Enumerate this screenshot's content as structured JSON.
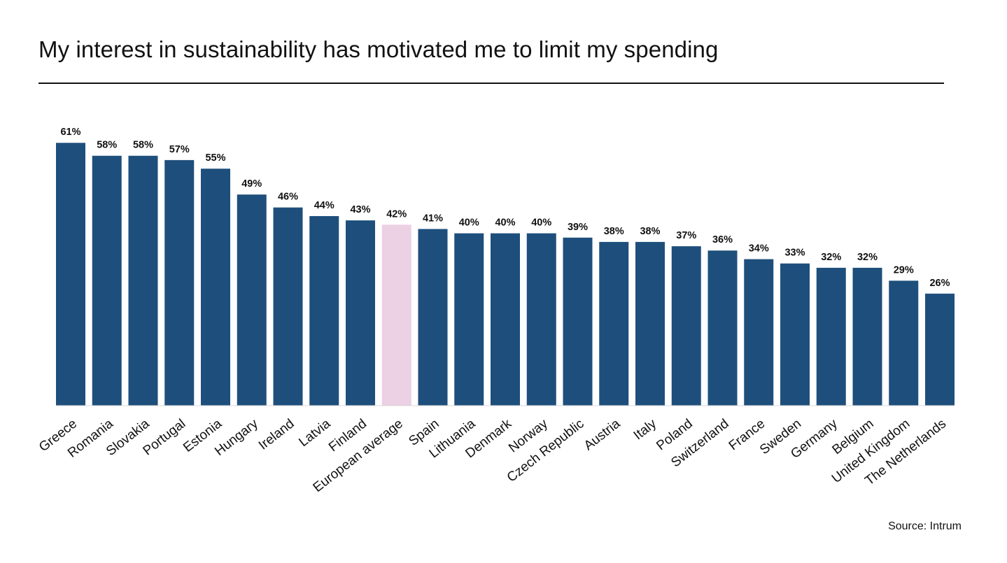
{
  "chart_data": {
    "type": "bar",
    "title": "My interest in sustainability has motivated me to limit my spending",
    "source": "Source: Intrum",
    "value_suffix": "%",
    "ylim": [
      0,
      65
    ],
    "grid": false,
    "legend": "none",
    "colors": {
      "default_bar": "#1e4f7c",
      "highlight_bar": "#ecd0e3",
      "baseline": "#d9d9d9"
    },
    "highlight_category": "European average",
    "categories": [
      "Greece",
      "Romania",
      "Slovakia",
      "Portugal",
      "Estonia",
      "Hungary",
      "Ireland",
      "Latvia",
      "Finland",
      "European average",
      "Spain",
      "Lithuania",
      "Denmark",
      "Norway",
      "Czech Republic",
      "Austria",
      "Italy",
      "Poland",
      "Switzerland",
      "France",
      "Sweden",
      "Germany",
      "Belgium",
      "United Kingdom",
      "The Netherlands"
    ],
    "values": [
      61,
      58,
      58,
      57,
      55,
      49,
      46,
      44,
      43,
      42,
      41,
      40,
      40,
      40,
      39,
      38,
      38,
      37,
      36,
      34,
      33,
      32,
      32,
      29,
      26
    ],
    "value_labels": [
      "61%",
      "58%",
      "58%",
      "57%",
      "55%",
      "49%",
      "46%",
      "44%",
      "43%",
      "42%",
      "41%",
      "40%",
      "40%",
      "40%",
      "39%",
      "38%",
      "38%",
      "37%",
      "36%",
      "34%",
      "33%",
      "32%",
      "32%",
      "29%",
      "26%"
    ]
  }
}
